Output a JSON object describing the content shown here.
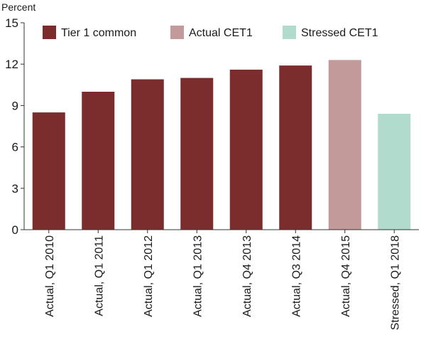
{
  "chart_data": {
    "type": "bar",
    "ylabel": "Percent",
    "ylim": [
      0,
      15
    ],
    "yticks": [
      0,
      3,
      6,
      9,
      12,
      15
    ],
    "categories": [
      "Actual, Q1 2010",
      "Actual, Q1 2011",
      "Actual, Q1 2012",
      "Actual, Q1 2013",
      "Actual, Q4 2013",
      "Actual, Q3 2014",
      "Actual, Q4 2015",
      "Stressed, Q1 2018"
    ],
    "values": [
      8.5,
      10.0,
      10.9,
      11.0,
      11.6,
      11.9,
      12.3,
      8.4
    ],
    "bar_series": [
      "tier1",
      "tier1",
      "tier1",
      "tier1",
      "tier1",
      "tier1",
      "actual_cet1",
      "stressed_cet1"
    ],
    "series": [
      {
        "key": "tier1",
        "name": "Tier 1 common",
        "color": "#7b2d2e"
      },
      {
        "key": "actual_cet1",
        "name": "Actual CET1",
        "color": "#c29a9a"
      },
      {
        "key": "stressed_cet1",
        "name": "Stressed CET1",
        "color": "#b1dccd"
      }
    ],
    "legend_position": "top",
    "grid": false
  }
}
